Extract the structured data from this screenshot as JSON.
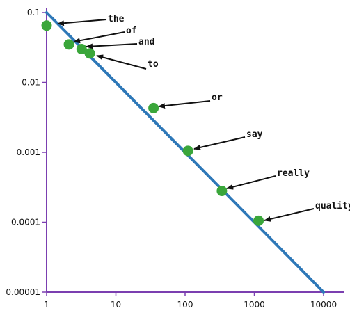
{
  "chart_data": {
    "type": "scatter",
    "x_scale": "log",
    "y_scale": "log",
    "xlim": [
      1,
      10000
    ],
    "ylim": [
      1e-05,
      0.1
    ],
    "x_ticks": [
      {
        "value": 1,
        "label": "1"
      },
      {
        "value": 10,
        "label": "10"
      },
      {
        "value": 100,
        "label": "100"
      },
      {
        "value": 1000,
        "label": "1000"
      },
      {
        "value": 10000,
        "label": "10000"
      }
    ],
    "y_ticks": [
      {
        "value": 0.1,
        "label": "0.1"
      },
      {
        "value": 0.01,
        "label": "0.01"
      },
      {
        "value": 0.001,
        "label": "0.001"
      },
      {
        "value": 0.0001,
        "label": "0.0001"
      },
      {
        "value": 1e-05,
        "label": "0.00001"
      }
    ],
    "fit_line": {
      "x": [
        1,
        10000
      ],
      "y": [
        0.1,
        1e-05
      ],
      "color": "#2e78b8"
    },
    "points": [
      {
        "word": "the",
        "x": 1,
        "y": 0.065
      },
      {
        "word": "of",
        "x": 2.1,
        "y": 0.035
      },
      {
        "word": "and",
        "x": 3.2,
        "y": 0.03
      },
      {
        "word": "to",
        "x": 4.2,
        "y": 0.026
      },
      {
        "word": "or",
        "x": 35,
        "y": 0.0043
      },
      {
        "word": "say",
        "x": 110,
        "y": 0.00105
      },
      {
        "word": "really",
        "x": 340,
        "y": 0.00028
      },
      {
        "word": "quality",
        "x": 1150,
        "y": 0.000105
      }
    ],
    "colors": {
      "axis": "#7b3fb0",
      "point": "#3aa63a",
      "arrow": "#111111"
    },
    "grid": false,
    "legend": "none"
  }
}
